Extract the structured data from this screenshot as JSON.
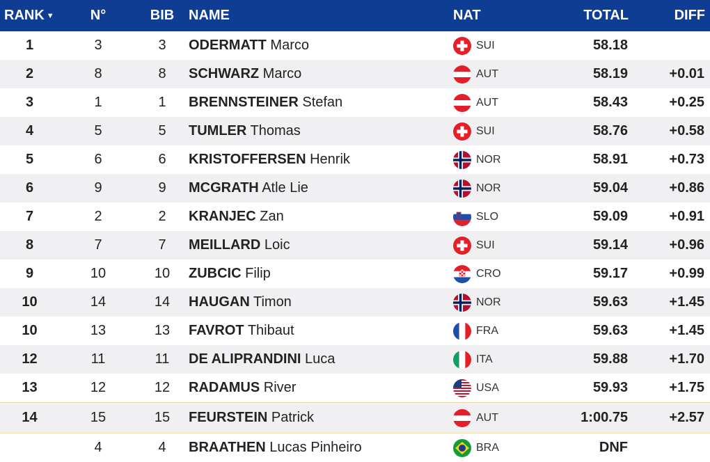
{
  "header": {
    "rank": "RANK",
    "no": "N°",
    "bib": "BIB",
    "name": "NAME",
    "nat": "NAT",
    "total": "TOTAL",
    "diff": "DIFF",
    "sort_icon": "caret-down-icon"
  },
  "rows": [
    {
      "rank": "1",
      "no": "3",
      "bib": "3",
      "last": "ODERMATT",
      "first": "Marco",
      "nat": "SUI",
      "total": "58.18",
      "diff": ""
    },
    {
      "rank": "2",
      "no": "8",
      "bib": "8",
      "last": "SCHWARZ",
      "first": "Marco",
      "nat": "AUT",
      "total": "58.19",
      "diff": "+0.01"
    },
    {
      "rank": "3",
      "no": "1",
      "bib": "1",
      "last": "BRENNSTEINER",
      "first": "Stefan",
      "nat": "AUT",
      "total": "58.43",
      "diff": "+0.25"
    },
    {
      "rank": "4",
      "no": "5",
      "bib": "5",
      "last": "TUMLER",
      "first": "Thomas",
      "nat": "SUI",
      "total": "58.76",
      "diff": "+0.58"
    },
    {
      "rank": "5",
      "no": "6",
      "bib": "6",
      "last": "KRISTOFFERSEN",
      "first": "Henrik",
      "nat": "NOR",
      "total": "58.91",
      "diff": "+0.73"
    },
    {
      "rank": "6",
      "no": "9",
      "bib": "9",
      "last": "MCGRATH",
      "first": "Atle Lie",
      "nat": "NOR",
      "total": "59.04",
      "diff": "+0.86"
    },
    {
      "rank": "7",
      "no": "2",
      "bib": "2",
      "last": "KRANJEC",
      "first": "Zan",
      "nat": "SLO",
      "total": "59.09",
      "diff": "+0.91"
    },
    {
      "rank": "8",
      "no": "7",
      "bib": "7",
      "last": "MEILLARD",
      "first": "Loic",
      "nat": "SUI",
      "total": "59.14",
      "diff": "+0.96"
    },
    {
      "rank": "9",
      "no": "10",
      "bib": "10",
      "last": "ZUBCIC",
      "first": "Filip",
      "nat": "CRO",
      "total": "59.17",
      "diff": "+0.99"
    },
    {
      "rank": "10",
      "no": "14",
      "bib": "14",
      "last": "HAUGAN",
      "first": "Timon",
      "nat": "NOR",
      "total": "59.63",
      "diff": "+1.45"
    },
    {
      "rank": "10",
      "no": "13",
      "bib": "13",
      "last": "FAVROT",
      "first": "Thibaut",
      "nat": "FRA",
      "total": "59.63",
      "diff": "+1.45"
    },
    {
      "rank": "12",
      "no": "11",
      "bib": "11",
      "last": "DE ALIPRANDINI",
      "first": "Luca",
      "nat": "ITA",
      "total": "59.88",
      "diff": "+1.70"
    },
    {
      "rank": "13",
      "no": "12",
      "bib": "12",
      "last": "RADAMUS",
      "first": "River",
      "nat": "USA",
      "total": "59.93",
      "diff": "+1.75"
    },
    {
      "rank": "14",
      "no": "15",
      "bib": "15",
      "last": "FEURSTEIN",
      "first": "Patrick",
      "nat": "AUT",
      "total": "1:00.75",
      "diff": "+2.57"
    },
    {
      "rank": "",
      "no": "4",
      "bib": "4",
      "last": "BRAATHEN",
      "first": "Lucas Pinheiro",
      "nat": "BRA",
      "total": "DNF",
      "diff": ""
    }
  ],
  "colors": {
    "header_bg": "#0f3d94",
    "alt_row": "#f0f0f3",
    "separator": "#f0dba6"
  }
}
